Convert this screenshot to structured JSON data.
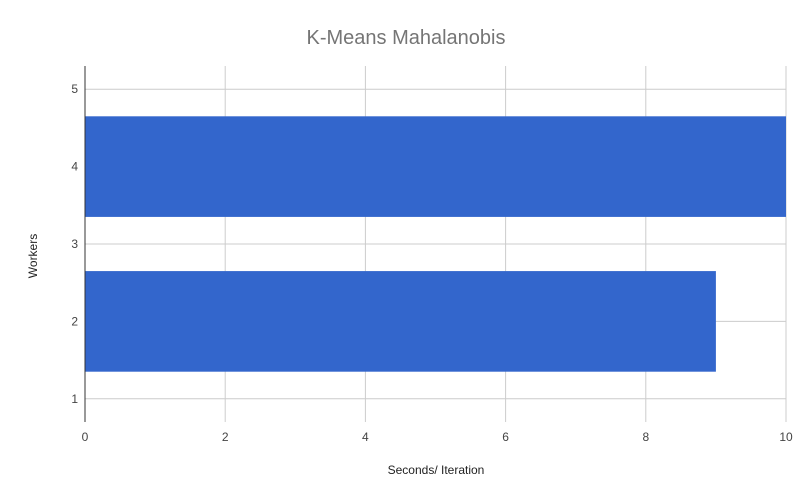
{
  "chart_data": {
    "type": "bar",
    "orientation": "horizontal",
    "title": "K-Means Mahalanobis",
    "xlabel": "Seconds/ Iteration",
    "ylabel": "Workers",
    "xlim": [
      0,
      10
    ],
    "x_ticks": [
      "0",
      "2",
      "4",
      "6",
      "8",
      "10"
    ],
    "ylim": [
      0.7,
      5.3
    ],
    "y_ticks": [
      "1",
      "2",
      "3",
      "4",
      "5"
    ],
    "bars": [
      {
        "worker": 2,
        "value": 9.0
      },
      {
        "worker": 4,
        "value": 10.0
      }
    ],
    "bar_color": "#3366cc",
    "grid": true,
    "legend": "none"
  }
}
